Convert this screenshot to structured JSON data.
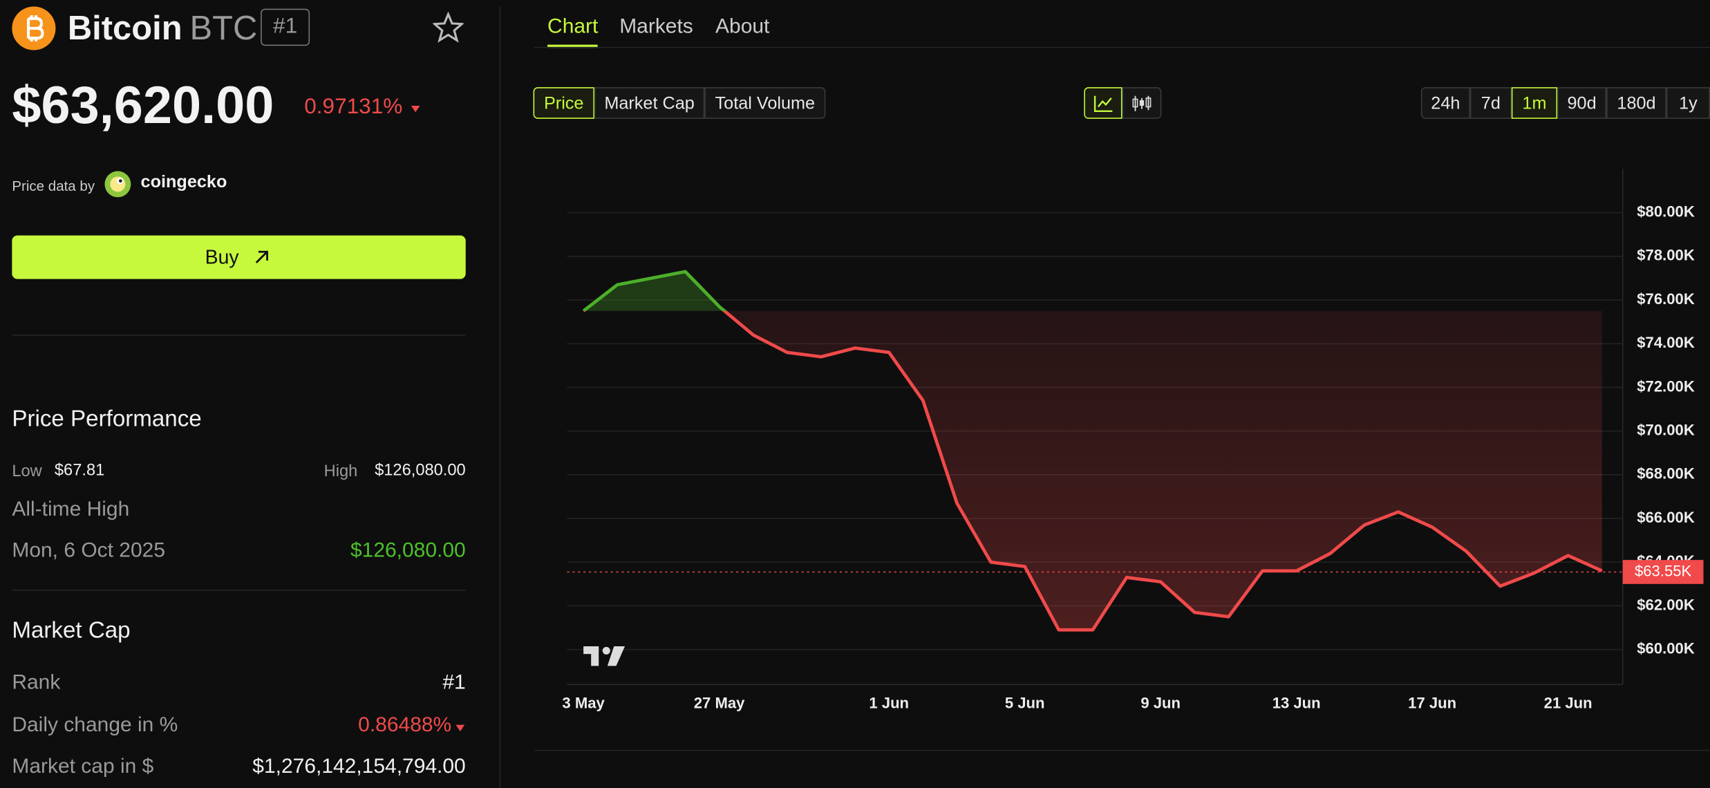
{
  "coin": {
    "name": "Bitcoin",
    "symbol": "BTC",
    "rank": "#1",
    "price": "$63,620.00",
    "change": "0.97131%"
  },
  "attribution": {
    "prefix": "Price data by",
    "source": "coingecko"
  },
  "buy": "Buy",
  "performance": {
    "title": "Price Performance",
    "low_label": "Low",
    "low": "$67.81",
    "high_label": "High",
    "high": "$126,080.00",
    "ath_label": "All-time High",
    "ath_date": "Mon, 6 Oct 2025",
    "ath_value": "$126,080.00"
  },
  "market_cap": {
    "title": "Market Cap",
    "rows": [
      {
        "label": "Rank",
        "value": "#1"
      },
      {
        "label": "Daily change in %",
        "value": "0.86488%"
      },
      {
        "label": "Market cap in $",
        "value": "$1,276,142,154,794.00"
      }
    ]
  },
  "tabs": [
    "Chart",
    "Markets",
    "About"
  ],
  "metrics": [
    "Price",
    "Market Cap",
    "Total Volume"
  ],
  "ranges": [
    "24h",
    "7d",
    "1m",
    "90d",
    "180d",
    "1y"
  ],
  "chart_data": {
    "type": "line",
    "categories": [
      "3 May",
      null,
      null,
      null,
      "27 May",
      null,
      null,
      null,
      null,
      "1 Jun",
      null,
      null,
      null,
      "5 Jun",
      null,
      null,
      null,
      "9 Jun",
      null,
      null,
      null,
      "13 Jun",
      null,
      null,
      null,
      "17 Jun",
      null,
      null,
      null,
      "21 Jun",
      null
    ],
    "values": [
      75500,
      76700,
      77000,
      77300,
      75700,
      74400,
      73600,
      73400,
      73800,
      73600,
      71400,
      66700,
      64000,
      63800,
      60900,
      60900,
      63300,
      63100,
      61700,
      61500,
      63600,
      63600,
      64400,
      65700,
      66300,
      65600,
      64500,
      62900,
      63500,
      64300,
      63600
    ],
    "color_up": "#4caf2a",
    "color_down": "#f04a4a",
    "ylim": [
      58400,
      82000
    ],
    "yticks": [
      {
        "value": 60000,
        "label": "$60.00K"
      },
      {
        "value": 62000,
        "label": "$62.00K"
      },
      {
        "value": 64000,
        "label": "$64.00K"
      },
      {
        "value": 66000,
        "label": "$66.00K"
      },
      {
        "value": 68000,
        "label": "$68.00K"
      },
      {
        "value": 70000,
        "label": "$70.00K"
      },
      {
        "value": 72000,
        "label": "$72.00K"
      },
      {
        "value": 74000,
        "label": "$74.00K"
      },
      {
        "value": 76000,
        "label": "$76.00K"
      },
      {
        "value": 78000,
        "label": "$78.00K"
      },
      {
        "value": 80000,
        "label": "$80.00K"
      }
    ],
    "current_price": {
      "value": 63550,
      "label": "$63.55K"
    },
    "grid": true
  }
}
